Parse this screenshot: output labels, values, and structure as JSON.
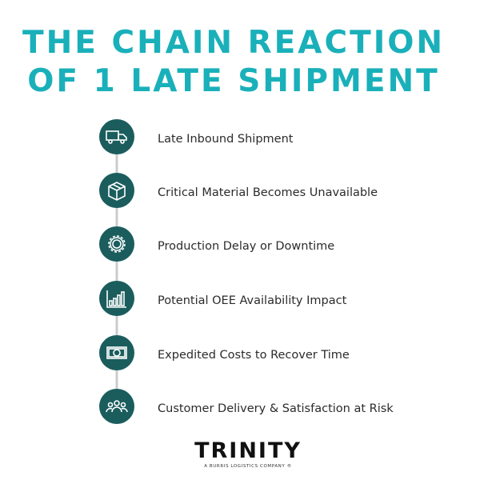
{
  "title": {
    "line1": "THE CHAIN REACTION",
    "line2": "OF 1 LATE SHIPMENT"
  },
  "steps": [
    {
      "label": "Late Inbound Shipment"
    },
    {
      "label": "Critical Material Becomes Unavailable"
    },
    {
      "label": "Production Delay or Downtime"
    },
    {
      "label": "Potential OEE Availability Impact"
    },
    {
      "label": "Expedited Costs to Recover Time"
    },
    {
      "label": "Customer Delivery & Satisfaction at Risk"
    }
  ],
  "logo": {
    "name": "TRINITY",
    "tagline": "A BURRIS LOGISTICS COMPANY ®"
  }
}
